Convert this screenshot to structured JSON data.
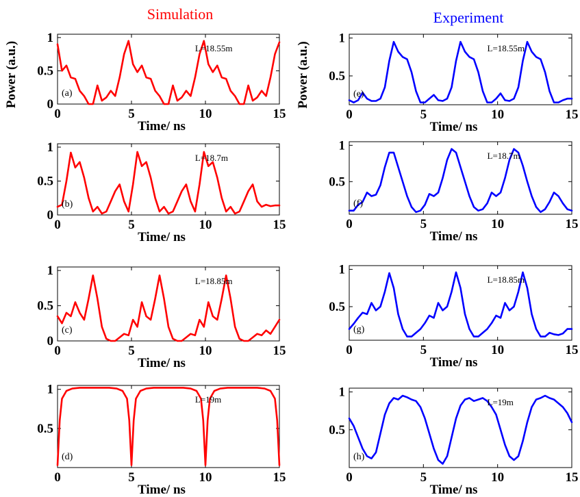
{
  "titles": {
    "left": "Simulation",
    "right": "Experiment",
    "left_color": "#ff0000",
    "right_color": "#0000ff"
  },
  "chart_data": [
    {
      "id": "a",
      "type": "line",
      "label": "(a)",
      "annotation": "L=18.55m",
      "column": "Simulation",
      "color": "#ff0000",
      "xlabel": "Time/ ns",
      "ylabel": "Power (a.u.)",
      "xlim": [
        0,
        15
      ],
      "ylim": [
        0,
        1.05
      ],
      "xticks": [
        0,
        5,
        10,
        15
      ],
      "yticks": [
        0,
        0.5,
        1
      ],
      "x": [
        0,
        0.3,
        0.6,
        0.9,
        1.2,
        1.5,
        1.8,
        2.1,
        2.4,
        2.7,
        3.0,
        3.3,
        3.6,
        3.9,
        4.2,
        4.5,
        4.8,
        5.1,
        5.4,
        5.7,
        6.0,
        6.3,
        6.6,
        6.9,
        7.2,
        7.5,
        7.8,
        8.1,
        8.4,
        8.7,
        9.0,
        9.3,
        9.6,
        9.9,
        10.2,
        10.5,
        10.8,
        11.1,
        11.4,
        11.7,
        12.0,
        12.3,
        12.6,
        12.9,
        13.2,
        13.5,
        13.8,
        14.1,
        14.4,
        14.7,
        15
      ],
      "y": [
        0.9,
        0.5,
        0.58,
        0.4,
        0.38,
        0.2,
        0.12,
        0.0,
        0.0,
        0.28,
        0.05,
        0.1,
        0.2,
        0.12,
        0.4,
        0.75,
        0.95,
        0.6,
        0.48,
        0.58,
        0.4,
        0.38,
        0.2,
        0.12,
        0.0,
        0.0,
        0.28,
        0.05,
        0.1,
        0.2,
        0.12,
        0.4,
        0.75,
        0.95,
        0.6,
        0.48,
        0.58,
        0.4,
        0.38,
        0.2,
        0.12,
        0.0,
        0.0,
        0.28,
        0.05,
        0.1,
        0.2,
        0.12,
        0.4,
        0.75,
        0.93
      ]
    },
    {
      "id": "b",
      "type": "line",
      "label": "(b)",
      "annotation": "L=18.7m",
      "column": "Simulation",
      "color": "#ff0000",
      "xlabel": "Time/ ns",
      "ylabel": "",
      "xlim": [
        0,
        15
      ],
      "ylim": [
        0,
        1.05
      ],
      "xticks": [
        0,
        5,
        10,
        15
      ],
      "yticks": [
        0,
        0.5,
        1
      ],
      "x": [
        0,
        0.3,
        0.6,
        0.9,
        1.2,
        1.5,
        1.8,
        2.1,
        2.4,
        2.7,
        3.0,
        3.3,
        3.6,
        3.9,
        4.2,
        4.5,
        4.8,
        5.1,
        5.4,
        5.7,
        6.0,
        6.3,
        6.6,
        6.9,
        7.2,
        7.5,
        7.8,
        8.1,
        8.4,
        8.7,
        9.0,
        9.3,
        9.6,
        9.9,
        10.2,
        10.5,
        10.8,
        11.1,
        11.4,
        11.7,
        12.0,
        12.3,
        12.6,
        12.9,
        13.2,
        13.5,
        13.8,
        14.1,
        14.4,
        14.7,
        15
      ],
      "y": [
        0.12,
        0.15,
        0.5,
        0.92,
        0.7,
        0.78,
        0.55,
        0.25,
        0.05,
        0.12,
        0.02,
        0.05,
        0.2,
        0.35,
        0.45,
        0.2,
        0.05,
        0.45,
        0.93,
        0.72,
        0.78,
        0.55,
        0.25,
        0.05,
        0.12,
        0.02,
        0.05,
        0.2,
        0.35,
        0.45,
        0.2,
        0.05,
        0.45,
        0.93,
        0.72,
        0.78,
        0.55,
        0.25,
        0.05,
        0.12,
        0.02,
        0.05,
        0.2,
        0.35,
        0.45,
        0.2,
        0.12,
        0.15,
        0.13,
        0.14,
        0.14
      ]
    },
    {
      "id": "c",
      "type": "line",
      "label": "(c)",
      "annotation": "L=18.85m",
      "column": "Simulation",
      "color": "#ff0000",
      "xlabel": "Time/ ns",
      "ylabel": "",
      "xlim": [
        0,
        15
      ],
      "ylim": [
        0,
        1.05
      ],
      "xticks": [
        0,
        5,
        10,
        15
      ],
      "yticks": [
        0,
        0.5,
        1
      ],
      "x": [
        0,
        0.3,
        0.6,
        0.9,
        1.2,
        1.5,
        1.8,
        2.1,
        2.4,
        2.7,
        3.0,
        3.3,
        3.6,
        3.9,
        4.2,
        4.5,
        4.8,
        5.1,
        5.4,
        5.7,
        6.0,
        6.3,
        6.6,
        6.9,
        7.2,
        7.5,
        7.8,
        8.1,
        8.4,
        8.7,
        9.0,
        9.3,
        9.6,
        9.9,
        10.2,
        10.5,
        10.8,
        11.1,
        11.4,
        11.7,
        12.0,
        12.3,
        12.6,
        12.9,
        13.2,
        13.5,
        13.8,
        14.1,
        14.4,
        14.7,
        15
      ],
      "y": [
        0.35,
        0.25,
        0.4,
        0.35,
        0.55,
        0.4,
        0.3,
        0.6,
        0.93,
        0.6,
        0.2,
        0.03,
        0.0,
        0.0,
        0.05,
        0.1,
        0.08,
        0.3,
        0.2,
        0.55,
        0.35,
        0.3,
        0.6,
        0.93,
        0.6,
        0.2,
        0.03,
        0.0,
        0.0,
        0.05,
        0.1,
        0.08,
        0.3,
        0.2,
        0.55,
        0.35,
        0.3,
        0.6,
        0.93,
        0.6,
        0.2,
        0.03,
        0.0,
        0.0,
        0.05,
        0.1,
        0.08,
        0.15,
        0.1,
        0.2,
        0.3
      ]
    },
    {
      "id": "d",
      "type": "line",
      "label": "(d)",
      "annotation": "L=19m",
      "column": "Simulation",
      "color": "#ff0000",
      "xlabel": "Time/ ns",
      "ylabel": "",
      "xlim": [
        0,
        15
      ],
      "ylim": [
        0,
        1.05
      ],
      "xticks": [
        0,
        5,
        10,
        15
      ],
      "yticks": [
        0.5,
        1
      ],
      "x": [
        0,
        0.15,
        0.3,
        0.6,
        1.0,
        1.5,
        2.5,
        3.5,
        4.0,
        4.4,
        4.7,
        4.85,
        5.0,
        5.15,
        5.3,
        5.6,
        6.0,
        6.5,
        7.5,
        8.5,
        9.0,
        9.4,
        9.7,
        9.85,
        10.0,
        10.15,
        10.3,
        10.6,
        11.0,
        11.5,
        12.5,
        13.5,
        14.0,
        14.4,
        14.7,
        14.85,
        15.0
      ],
      "y": [
        0.03,
        0.6,
        0.88,
        0.98,
        1.01,
        1.02,
        1.02,
        1.02,
        1.01,
        0.98,
        0.88,
        0.6,
        0.03,
        0.6,
        0.88,
        0.98,
        1.01,
        1.02,
        1.02,
        1.02,
        1.01,
        0.98,
        0.88,
        0.6,
        0.03,
        0.6,
        0.88,
        0.98,
        1.01,
        1.02,
        1.02,
        1.02,
        1.01,
        0.98,
        0.88,
        0.6,
        0.03
      ]
    },
    {
      "id": "e",
      "type": "line",
      "label": "(e)",
      "annotation": "L=18.55m",
      "column": "Experiment",
      "color": "#0000ff",
      "xlabel": "Time/ ns",
      "ylabel": "Power (a.u.)",
      "xlim": [
        0,
        15
      ],
      "ylim": [
        0.12,
        1.05
      ],
      "xticks": [
        0,
        5,
        10,
        15
      ],
      "yticks": [
        0.5,
        1
      ],
      "x": [
        0,
        0.3,
        0.6,
        0.9,
        1.2,
        1.5,
        1.8,
        2.1,
        2.4,
        2.7,
        3.0,
        3.3,
        3.6,
        3.9,
        4.2,
        4.5,
        4.8,
        5.1,
        5.4,
        5.7,
        6.0,
        6.3,
        6.6,
        6.9,
        7.2,
        7.5,
        7.8,
        8.1,
        8.4,
        8.7,
        9.0,
        9.3,
        9.6,
        9.9,
        10.2,
        10.5,
        10.8,
        11.1,
        11.4,
        11.7,
        12.0,
        12.3,
        12.6,
        12.9,
        13.2,
        13.5,
        13.8,
        14.1,
        14.4,
        14.7,
        15
      ],
      "y": [
        0.18,
        0.15,
        0.18,
        0.28,
        0.2,
        0.17,
        0.17,
        0.2,
        0.35,
        0.7,
        0.95,
        0.82,
        0.75,
        0.72,
        0.55,
        0.3,
        0.15,
        0.15,
        0.2,
        0.25,
        0.18,
        0.17,
        0.2,
        0.35,
        0.7,
        0.95,
        0.82,
        0.75,
        0.72,
        0.55,
        0.3,
        0.15,
        0.15,
        0.2,
        0.27,
        0.18,
        0.17,
        0.2,
        0.35,
        0.7,
        0.95,
        0.82,
        0.75,
        0.72,
        0.55,
        0.3,
        0.15,
        0.15,
        0.18,
        0.2,
        0.2
      ]
    },
    {
      "id": "f",
      "type": "line",
      "label": "(f)",
      "annotation": "L=18.7m",
      "column": "Experiment",
      "color": "#0000ff",
      "xlabel": "Time/ ns",
      "ylabel": "",
      "xlim": [
        0,
        15
      ],
      "ylim": [
        0.05,
        1.05
      ],
      "xticks": [
        0,
        5,
        10,
        15
      ],
      "yticks": [
        0.5,
        1
      ],
      "x": [
        0,
        0.3,
        0.6,
        0.9,
        1.2,
        1.5,
        1.8,
        2.1,
        2.4,
        2.7,
        3.0,
        3.3,
        3.6,
        3.9,
        4.2,
        4.5,
        4.8,
        5.1,
        5.4,
        5.7,
        6.0,
        6.3,
        6.6,
        6.9,
        7.2,
        7.5,
        7.8,
        8.1,
        8.4,
        8.7,
        9.0,
        9.3,
        9.6,
        9.9,
        10.2,
        10.5,
        10.8,
        11.1,
        11.4,
        11.7,
        12.0,
        12.3,
        12.6,
        12.9,
        13.2,
        13.5,
        13.8,
        14.1,
        14.4,
        14.7,
        15
      ],
      "y": [
        0.1,
        0.1,
        0.18,
        0.22,
        0.35,
        0.3,
        0.32,
        0.45,
        0.7,
        0.9,
        0.9,
        0.7,
        0.5,
        0.3,
        0.15,
        0.08,
        0.1,
        0.18,
        0.33,
        0.3,
        0.35,
        0.55,
        0.8,
        0.95,
        0.9,
        0.7,
        0.5,
        0.3,
        0.15,
        0.1,
        0.12,
        0.2,
        0.35,
        0.3,
        0.35,
        0.55,
        0.8,
        0.95,
        0.9,
        0.72,
        0.5,
        0.3,
        0.15,
        0.08,
        0.12,
        0.22,
        0.35,
        0.3,
        0.2,
        0.12,
        0.1
      ]
    },
    {
      "id": "g",
      "type": "line",
      "label": "(g)",
      "annotation": "L=18.85m",
      "column": "Experiment",
      "color": "#0000ff",
      "xlabel": "Time/ ns",
      "ylabel": "",
      "xlim": [
        0,
        15
      ],
      "ylim": [
        0.05,
        1.05
      ],
      "xticks": [
        0,
        5,
        10,
        15
      ],
      "yticks": [
        0.5,
        1
      ],
      "x": [
        0,
        0.3,
        0.6,
        0.9,
        1.2,
        1.5,
        1.8,
        2.1,
        2.4,
        2.7,
        3.0,
        3.3,
        3.6,
        3.9,
        4.2,
        4.5,
        4.8,
        5.1,
        5.4,
        5.7,
        6.0,
        6.3,
        6.6,
        6.9,
        7.2,
        7.5,
        7.8,
        8.1,
        8.4,
        8.7,
        9.0,
        9.3,
        9.6,
        9.9,
        10.2,
        10.5,
        10.8,
        11.1,
        11.4,
        11.7,
        12.0,
        12.3,
        12.6,
        12.9,
        13.2,
        13.5,
        13.8,
        14.1,
        14.4,
        14.7,
        15
      ],
      "y": [
        0.2,
        0.27,
        0.35,
        0.42,
        0.4,
        0.55,
        0.45,
        0.5,
        0.7,
        0.95,
        0.75,
        0.4,
        0.2,
        0.1,
        0.1,
        0.15,
        0.2,
        0.28,
        0.38,
        0.35,
        0.55,
        0.45,
        0.5,
        0.7,
        0.96,
        0.75,
        0.4,
        0.2,
        0.1,
        0.1,
        0.15,
        0.2,
        0.28,
        0.38,
        0.35,
        0.55,
        0.45,
        0.5,
        0.7,
        0.96,
        0.75,
        0.4,
        0.2,
        0.1,
        0.1,
        0.15,
        0.13,
        0.12,
        0.14,
        0.2,
        0.2
      ]
    },
    {
      "id": "h",
      "type": "line",
      "label": "(h)",
      "annotation": "L=19m",
      "column": "Experiment",
      "color": "#0000ff",
      "xlabel": "Time/ ns",
      "ylabel": "",
      "xlim": [
        0,
        15
      ],
      "ylim": [
        0,
        1.05
      ],
      "xticks": [
        0,
        5,
        10,
        15
      ],
      "yticks": [
        0.5,
        1
      ],
      "x": [
        0,
        0.3,
        0.6,
        0.9,
        1.2,
        1.5,
        1.8,
        2.1,
        2.4,
        2.7,
        3.0,
        3.3,
        3.6,
        3.9,
        4.2,
        4.5,
        4.8,
        5.1,
        5.4,
        5.7,
        6.0,
        6.3,
        6.6,
        6.9,
        7.2,
        7.5,
        7.8,
        8.1,
        8.4,
        8.7,
        9.0,
        9.3,
        9.6,
        9.9,
        10.2,
        10.5,
        10.8,
        11.1,
        11.4,
        11.7,
        12.0,
        12.3,
        12.6,
        12.9,
        13.2,
        13.5,
        13.8,
        14.1,
        14.4,
        14.7,
        15
      ],
      "y": [
        0.65,
        0.55,
        0.4,
        0.25,
        0.15,
        0.12,
        0.2,
        0.45,
        0.7,
        0.85,
        0.92,
        0.9,
        0.95,
        0.93,
        0.9,
        0.88,
        0.8,
        0.65,
        0.45,
        0.25,
        0.1,
        0.05,
        0.15,
        0.4,
        0.65,
        0.82,
        0.9,
        0.92,
        0.88,
        0.9,
        0.92,
        0.88,
        0.8,
        0.7,
        0.5,
        0.3,
        0.15,
        0.1,
        0.15,
        0.35,
        0.6,
        0.8,
        0.9,
        0.92,
        0.95,
        0.92,
        0.9,
        0.85,
        0.8,
        0.72,
        0.6
      ]
    }
  ]
}
